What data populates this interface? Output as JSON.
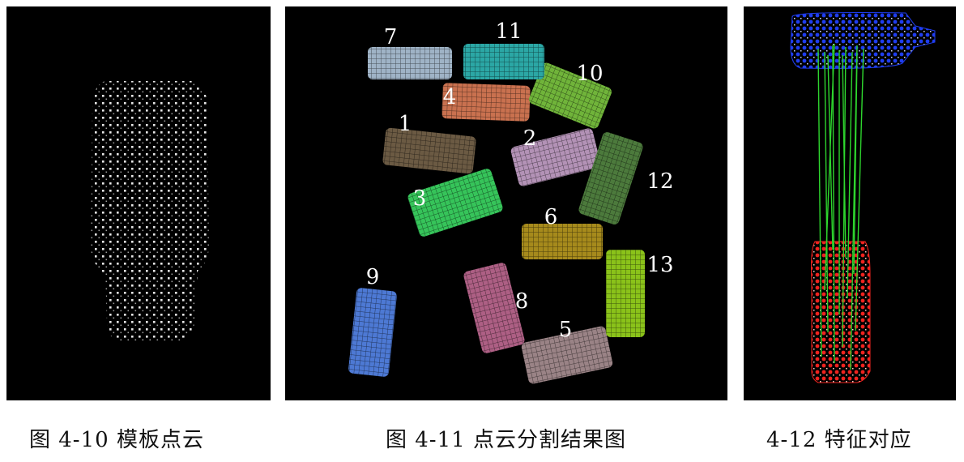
{
  "figures": [
    {
      "id": "template",
      "caption": "图 4-10  模板点云"
    },
    {
      "id": "segmentation",
      "caption": "图 4-11  点云分割结果图",
      "segments": [
        {
          "label": "1",
          "color": "#6b5a43"
        },
        {
          "label": "2",
          "color": "#b392b6"
        },
        {
          "label": "3",
          "color": "#36c45a"
        },
        {
          "label": "4",
          "color": "#c9714f"
        },
        {
          "label": "5",
          "color": "#9a8386"
        },
        {
          "label": "6",
          "color": "#a68a1c"
        },
        {
          "label": "7",
          "color": "#9fb3c6"
        },
        {
          "label": "8",
          "color": "#ad5f84"
        },
        {
          "label": "9",
          "color": "#4d79d4"
        },
        {
          "label": "10",
          "color": "#70b43a"
        },
        {
          "label": "11",
          "color": "#2ba7a5"
        },
        {
          "label": "12",
          "color": "#4c7a3c"
        },
        {
          "label": "13",
          "color": "#8ac21a"
        }
      ]
    },
    {
      "id": "correspondence",
      "caption": "4-12  特征对应",
      "colors": {
        "template": "#1f3df0",
        "scene": "#f0231f",
        "match_lines": "#2ed62e"
      }
    }
  ]
}
